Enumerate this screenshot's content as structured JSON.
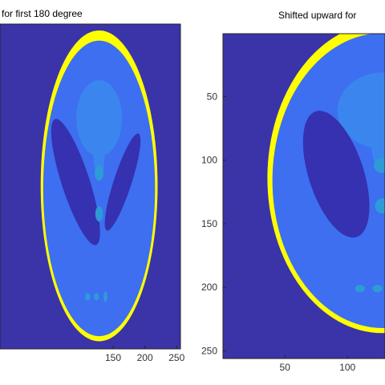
{
  "chart_data": [
    {
      "type": "heatmap",
      "title": "for first 180 degree",
      "xlim": [
        -28,
        256
      ],
      "ylim": [
        256,
        1
      ],
      "x_ticks": [
        150,
        200,
        250
      ],
      "y_ticks": [],
      "shift_up": 0,
      "colormap": {
        "background": "#3a34a8",
        "skull": "#ffff00",
        "brain": "#3d6ff0",
        "ventricle": "#3531b0",
        "lesion": "#3a86ee",
        "small_dot": "#2e9ad8"
      }
    },
    {
      "type": "heatmap",
      "title": "Shifted upward for",
      "xlim": [
        0.5,
        130
      ],
      "ylim": [
        256,
        0.5
      ],
      "x_ticks": [
        50,
        100
      ],
      "y_ticks": [
        50,
        100,
        150,
        200,
        250
      ],
      "shift_up": 14,
      "colormap": {
        "background": "#3a34a8",
        "skull": "#ffff00",
        "brain": "#3d6ff0",
        "ventricle": "#3531b0",
        "lesion": "#3a86ee",
        "small_dot": "#2e9ad8"
      }
    }
  ]
}
